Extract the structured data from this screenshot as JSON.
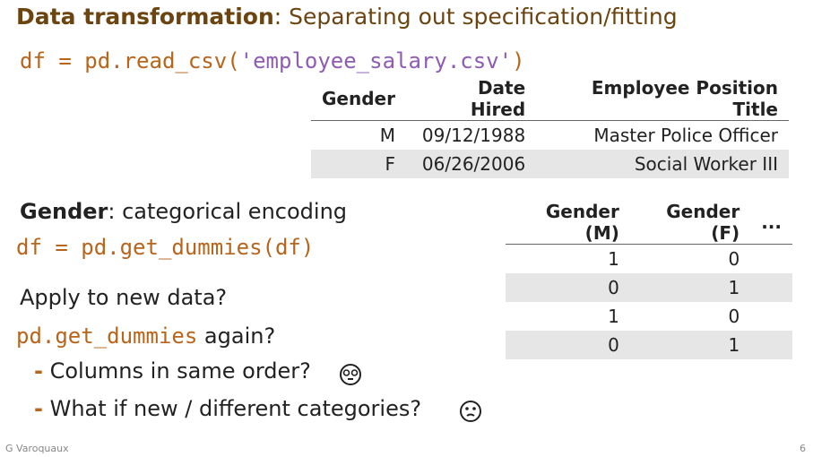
{
  "header": {
    "title_bold": "Data transformation",
    "title_rest": ": Separating out specification/fitting"
  },
  "code1": {
    "start": "df = pd.read_csv(",
    "string": "'employee_salary.csv'",
    "end": ")"
  },
  "table1": {
    "headers": [
      "Gender",
      "Date Hired",
      "Employee Position Title"
    ],
    "rows": [
      [
        "M",
        "09/12/1988",
        "Master Police Officer"
      ],
      [
        "F",
        "06/26/2006",
        "Social Worker III"
      ]
    ]
  },
  "section": {
    "bold": "Gender",
    "rest": ": categorical encoding"
  },
  "code2": "df = pd.get_dummies(df)",
  "question": "Apply to new data?",
  "again": {
    "code": "pd.get_dummies",
    "rest": " again?"
  },
  "bullets": [
    "Columns in same order?",
    "What if new / different categories?"
  ],
  "bullet_marker": "-",
  "table2": {
    "headers": [
      "Gender (M)",
      "Gender (F)",
      "..."
    ],
    "rows": [
      [
        "1",
        "0"
      ],
      [
        "0",
        "1"
      ],
      [
        "1",
        "0"
      ],
      [
        "0",
        "1"
      ]
    ]
  },
  "footer": {
    "author": "G Varoquaux",
    "page": "6"
  }
}
